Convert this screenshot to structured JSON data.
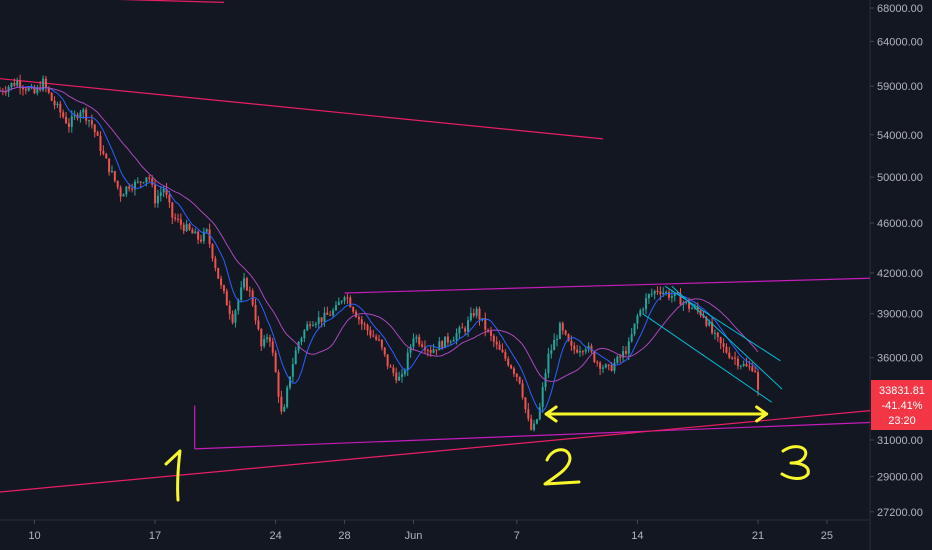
{
  "chart_data": {
    "type": "candlestick",
    "colors": {
      "background": "#131722",
      "axis_text": "#b2b5be",
      "up": "#26a69a",
      "down": "#ef5350",
      "ma_fast": "#2962ff",
      "ma_slow": "#ab47bc",
      "trend_magenta": "#c51cba",
      "trend_red": "#e91e63",
      "channel_teal": "#00bcd4",
      "annotation": "#f7f72b",
      "price_badge": "#f23645"
    },
    "y_axis": {
      "ticks": [
        {
          "label": "68000.00",
          "value": 68000
        },
        {
          "label": "64000.00",
          "value": 64000
        },
        {
          "label": "59000.00",
          "value": 59000
        },
        {
          "label": "54000.00",
          "value": 54000
        },
        {
          "label": "50000.00",
          "value": 50000
        },
        {
          "label": "46000.00",
          "value": 46000
        },
        {
          "label": "42000.00",
          "value": 42000
        },
        {
          "label": "39000.00",
          "value": 39000
        },
        {
          "label": "36000.00",
          "value": 36000
        },
        {
          "label": "31000.00",
          "value": 31000
        },
        {
          "label": "29000.00",
          "value": 29000
        },
        {
          "label": "27200.00",
          "value": 27200
        }
      ],
      "scale": "log",
      "ylim": [
        26800,
        69000
      ]
    },
    "x_axis": {
      "ticks": [
        {
          "label": "10",
          "day": 0
        },
        {
          "label": "17",
          "day": 7
        },
        {
          "label": "24",
          "day": 14
        },
        {
          "label": "28",
          "day": 18
        },
        {
          "label": "Jun",
          "day": 22
        },
        {
          "label": "7",
          "day": 28
        },
        {
          "label": "14",
          "day": 35
        },
        {
          "label": "21",
          "day": 42
        },
        {
          "label": "25",
          "day": 46
        }
      ],
      "xlim": [
        -2,
        48.5
      ]
    },
    "price_path": [
      [
        -2,
        58500
      ],
      [
        -1,
        59500
      ],
      [
        0,
        58200
      ],
      [
        0.5,
        59400
      ],
      [
        1,
        57500
      ],
      [
        2,
        55000
      ],
      [
        2.7,
        56600
      ],
      [
        3.3,
        55200
      ],
      [
        4,
        52000
      ],
      [
        5,
        48500
      ],
      [
        5.5,
        49300
      ],
      [
        6,
        49400
      ],
      [
        6.6,
        50300
      ],
      [
        7,
        48000
      ],
      [
        7.5,
        49000
      ],
      [
        8,
        46500
      ],
      [
        9,
        45300
      ],
      [
        9.6,
        44600
      ],
      [
        10,
        45200
      ],
      [
        10.8,
        41000
      ],
      [
        11.5,
        38700
      ],
      [
        12.2,
        41400
      ],
      [
        12.6,
        40200
      ],
      [
        13.2,
        36500
      ],
      [
        13.6,
        37800
      ],
      [
        14,
        35000
      ],
      [
        14.4,
        32000
      ],
      [
        14.8,
        34800
      ],
      [
        15.3,
        37000
      ],
      [
        16,
        38500
      ],
      [
        16.8,
        38700
      ],
      [
        17.5,
        39300
      ],
      [
        18,
        40500
      ],
      [
        19,
        38300
      ],
      [
        20,
        37000
      ],
      [
        20.6,
        35300
      ],
      [
        21.3,
        34500
      ],
      [
        22,
        37500
      ],
      [
        23,
        36500
      ],
      [
        24,
        37200
      ],
      [
        25,
        38000
      ],
      [
        25.6,
        39300
      ],
      [
        26.3,
        37700
      ],
      [
        27,
        36400
      ],
      [
        27.6,
        35600
      ],
      [
        28.2,
        34500
      ],
      [
        28.6,
        32200
      ],
      [
        28.9,
        31400
      ],
      [
        29.3,
        32600
      ],
      [
        29.8,
        36000
      ],
      [
        30.5,
        38000
      ],
      [
        31.2,
        36500
      ],
      [
        32,
        36800
      ],
      [
        32.6,
        35800
      ],
      [
        33.3,
        35200
      ],
      [
        34,
        36000
      ],
      [
        34.5,
        36800
      ],
      [
        35,
        38800
      ],
      [
        35.6,
        40200
      ],
      [
        36.2,
        40800
      ],
      [
        36.8,
        40400
      ],
      [
        37.4,
        40100
      ],
      [
        38,
        39500
      ],
      [
        38.8,
        39000
      ],
      [
        39.4,
        37500
      ],
      [
        40,
        36600
      ],
      [
        40.8,
        35800
      ],
      [
        41.4,
        35300
      ],
      [
        41.8,
        35500
      ],
      [
        42,
        33831.81
      ]
    ],
    "trend_lines": [
      {
        "color": "magenta",
        "from": [
          18,
          40500
        ],
        "to": [
          48.5,
          41600
        ]
      },
      {
        "color": "magenta",
        "from": [
          9.3,
          33000
        ],
        "to": [
          9.3,
          30500
        ]
      },
      {
        "color": "magenta",
        "from": [
          9.3,
          30500
        ],
        "to": [
          48.5,
          32000
        ]
      },
      {
        "color": "red",
        "from": [
          -2,
          28200
        ],
        "to": [
          48.5,
          32700
        ]
      },
      {
        "color": "red",
        "from": [
          -2,
          59800
        ],
        "to": [
          33,
          53600
        ]
      },
      {
        "color": "red",
        "from": [
          -2,
          69500
        ],
        "to": [
          11,
          68700
        ]
      }
    ],
    "channel_lines": [
      {
        "from": [
          36.6,
          41000
        ],
        "to": [
          43.3,
          35800
        ]
      },
      {
        "from": [
          35.3,
          39000
        ],
        "to": [
          42.8,
          33200
        ]
      },
      {
        "from": [
          37,
          41000
        ],
        "to": [
          43.4,
          34000
        ]
      }
    ],
    "annotations": {
      "arrow": {
        "from": [
          29.7,
          32500
        ],
        "to": [
          42.5,
          32500
        ]
      },
      "numbers": [
        "1",
        "2",
        "3"
      ]
    },
    "last_price": {
      "price": "33831.81",
      "change": "-41.41%",
      "countdown": "23:20"
    }
  }
}
